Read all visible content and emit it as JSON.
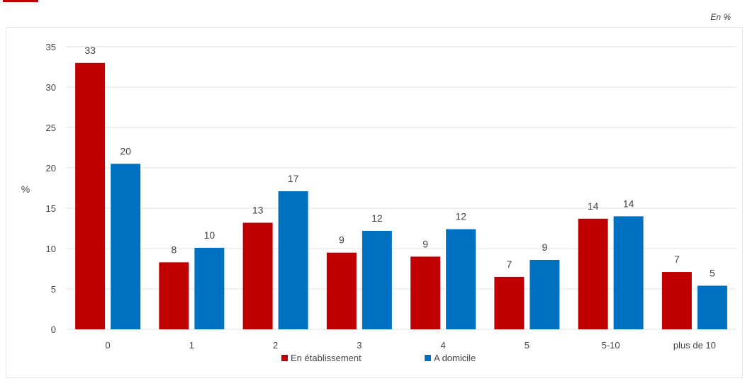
{
  "unit_note": "En %",
  "colors": {
    "etablissement": "#c00000",
    "domicile": "#0070c0",
    "grid": "#e0e0e0"
  },
  "chart_data": {
    "type": "bar",
    "ylabel": "%",
    "ylim": [
      0,
      35
    ],
    "yticks": [
      0,
      5,
      10,
      15,
      20,
      25,
      30,
      35
    ],
    "grid": true,
    "legend_position": "bottom",
    "categories": [
      "0",
      "1",
      "2",
      "3",
      "4",
      "5",
      "5-10",
      "plus de 10"
    ],
    "series": [
      {
        "name": "En établissement",
        "color": "#c00000",
        "values": [
          33,
          8.3,
          13.2,
          9.5,
          9.0,
          6.5,
          13.7,
          7.1
        ],
        "labels": [
          "33",
          "8",
          "13",
          "9",
          "9",
          "7",
          "14",
          "7"
        ]
      },
      {
        "name": "A domicile",
        "color": "#0070c0",
        "values": [
          20.5,
          10.1,
          17.1,
          12.2,
          12.4,
          8.6,
          14.0,
          5.4
        ],
        "labels": [
          "20",
          "10",
          "17",
          "12",
          "12",
          "9",
          "14",
          "5"
        ]
      }
    ]
  }
}
